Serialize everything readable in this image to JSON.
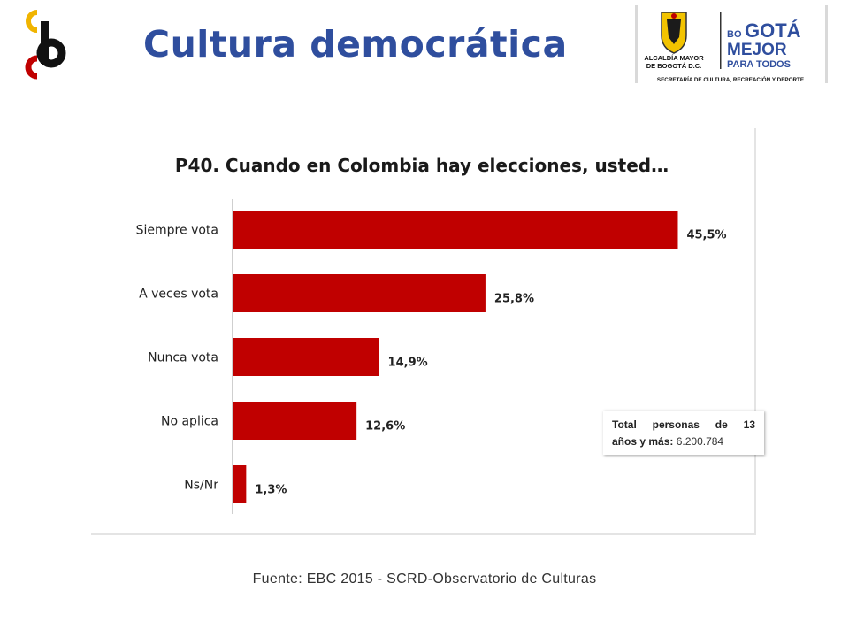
{
  "header": {
    "title": "Cultura democrática",
    "logo_left_letters": [
      "c",
      "c",
      "b"
    ],
    "logo_right": {
      "entity_line1": "ALCALDÍA MAYOR",
      "entity_line2": "DE BOGOTÁ D.C.",
      "slogan_bo": "BO",
      "slogan_gota": "GOTÁ",
      "slogan_mejor": "MEJOR",
      "slogan_para": "PARA TODOS",
      "secretaria": "SECRETARÍA DE CULTURA, RECREACIÓN Y DEPORTE"
    }
  },
  "chart_data": {
    "type": "bar",
    "orientation": "horizontal",
    "title": "P40. Cuando en Colombia hay elecciones, usted…",
    "categories": [
      "Siempre vota",
      "A veces vota",
      "Nunca vota",
      "No aplica",
      "Ns/Nr"
    ],
    "values": [
      45.5,
      25.8,
      14.9,
      12.6,
      1.3
    ],
    "value_labels": [
      "45,5%",
      "25,8%",
      "14,9%",
      "12,6%",
      "1,3%"
    ],
    "xlim": [
      0,
      46
    ],
    "grid": false,
    "bar_color": "#c00000"
  },
  "total_box": {
    "line1": "Total personas de 13",
    "line2_label": "años y más:",
    "value": "6.200.784"
  },
  "footer": {
    "source": "Fuente: EBC 2015 - SCRD-Observatorio de Culturas"
  }
}
